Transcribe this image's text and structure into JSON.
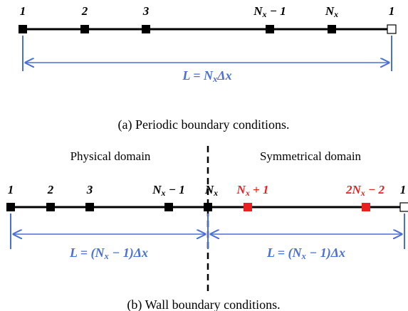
{
  "top": {
    "nodes": [
      {
        "pre": "1"
      },
      {
        "pre": "2"
      },
      {
        "pre": "3"
      },
      {
        "pre": "N",
        "sub": "x",
        "after": " − 1"
      },
      {
        "pre": "N",
        "sub": "x"
      },
      {
        "pre": "1"
      }
    ],
    "length": {
      "pre": "L = N",
      "sub": "x",
      "after": "Δx"
    },
    "caption": "(a) Periodic boundary conditions."
  },
  "bottom": {
    "physical": "Physical domain",
    "symmetrical": "Symmetrical domain",
    "nodes": [
      {
        "pre": "1"
      },
      {
        "pre": "2"
      },
      {
        "pre": "3"
      },
      {
        "pre": "N",
        "sub": "x",
        "after": " − 1"
      },
      {
        "pre": "N",
        "sub": "x"
      },
      {
        "pre": "N",
        "sub": "x",
        "after": " + 1"
      },
      {
        "pre": "2N",
        "sub": "x",
        "after": " − 2"
      },
      {
        "pre": "1"
      }
    ],
    "length_left": {
      "pre": "L = (N",
      "sub": "x",
      "after": " − 1)Δx"
    },
    "length_right": {
      "pre": "L = (N",
      "sub": "x",
      "after": " − 1)Δx"
    },
    "caption": "(b) Wall boundary conditions."
  }
}
